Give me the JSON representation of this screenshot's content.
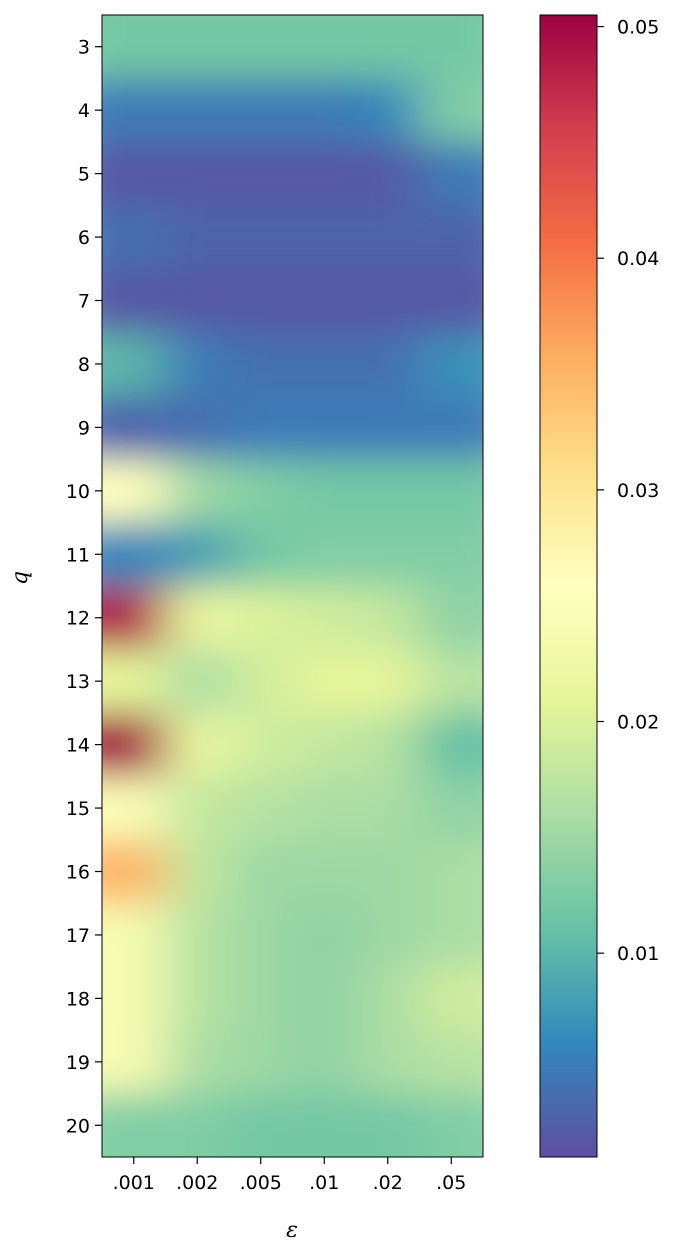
{
  "chart_data": {
    "type": "heatmap",
    "title": "",
    "xlabel": "ε",
    "ylabel": "q",
    "x_categories": [
      ".001",
      ".002",
      ".005",
      ".01",
      ".02",
      ".05"
    ],
    "y_categories": [
      "3",
      "4",
      "5",
      "6",
      "7",
      "8",
      "9",
      "10",
      "11",
      "12",
      "13",
      "14",
      "15",
      "16",
      "17",
      "18",
      "19",
      "20"
    ],
    "colormap": "Spectral_r",
    "interpolation": "smooth",
    "clim": [
      0.0012,
      0.0505
    ],
    "colorbar_ticks": [
      "0.01",
      "0.02",
      "0.03",
      "0.04",
      "0.05"
    ],
    "colorbar_tick_values": [
      0.01,
      0.02,
      0.03,
      0.04,
      0.05
    ],
    "values": [
      [
        0.012,
        0.012,
        0.012,
        0.012,
        0.012,
        0.012
      ],
      [
        0.005,
        0.005,
        0.005,
        0.005,
        0.006,
        0.013
      ],
      [
        0.002,
        0.002,
        0.002,
        0.002,
        0.002,
        0.005
      ],
      [
        0.004,
        0.003,
        0.003,
        0.003,
        0.003,
        0.003
      ],
      [
        0.002,
        0.002,
        0.002,
        0.002,
        0.002,
        0.002
      ],
      [
        0.01,
        0.005,
        0.004,
        0.004,
        0.004,
        0.007
      ],
      [
        0.003,
        0.004,
        0.005,
        0.005,
        0.005,
        0.005
      ],
      [
        0.026,
        0.015,
        0.013,
        0.012,
        0.012,
        0.012
      ],
      [
        0.006,
        0.008,
        0.012,
        0.013,
        0.013,
        0.013
      ],
      [
        0.049,
        0.022,
        0.02,
        0.019,
        0.018,
        0.014
      ],
      [
        0.021,
        0.016,
        0.019,
        0.021,
        0.021,
        0.017
      ],
      [
        0.05,
        0.022,
        0.019,
        0.018,
        0.017,
        0.011
      ],
      [
        0.025,
        0.018,
        0.017,
        0.016,
        0.016,
        0.014
      ],
      [
        0.035,
        0.018,
        0.015,
        0.015,
        0.015,
        0.016
      ],
      [
        0.024,
        0.017,
        0.015,
        0.014,
        0.015,
        0.016
      ],
      [
        0.024,
        0.017,
        0.015,
        0.014,
        0.016,
        0.019
      ],
      [
        0.024,
        0.016,
        0.015,
        0.014,
        0.016,
        0.017
      ],
      [
        0.013,
        0.013,
        0.012,
        0.012,
        0.012,
        0.013
      ]
    ]
  }
}
